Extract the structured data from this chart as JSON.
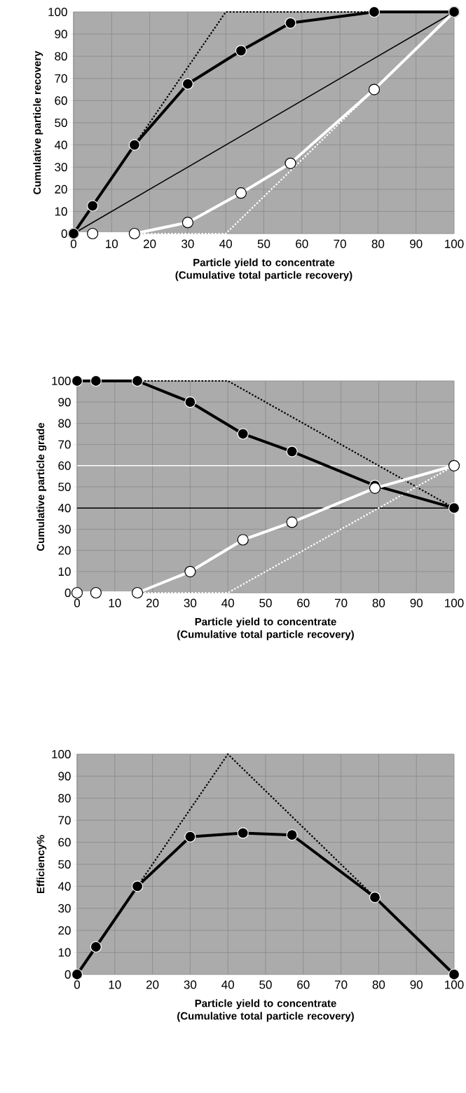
{
  "chart_data": [
    {
      "type": "line",
      "xlabel": "Particle yield to concentrate (Cumulative total particle recovery)",
      "ylabel": "Cumulative particle recovery",
      "xlim": [
        0,
        100
      ],
      "ylim": [
        0,
        100
      ],
      "xticks": [
        0,
        10,
        20,
        30,
        40,
        50,
        60,
        70,
        80,
        90,
        100
      ],
      "yticks": [
        0,
        10,
        20,
        30,
        40,
        50,
        60,
        70,
        80,
        90,
        100
      ],
      "grid": true,
      "series": [
        {
          "color": "#000000",
          "x": [
            0,
            40,
            100
          ],
          "values": [
            0,
            100,
            100
          ],
          "line_style": "dotted"
        },
        {
          "color": "#ffffff",
          "x": [
            0,
            40,
            100
          ],
          "values": [
            0,
            0,
            100
          ],
          "line_style": "dotted"
        },
        {
          "color": "#000000",
          "x": [
            0,
            100
          ],
          "values": [
            0,
            100
          ],
          "marker": "none",
          "line_style": "solid"
        },
        {
          "color": "#ffffff",
          "x": [
            0,
            5,
            16,
            30,
            44,
            57,
            79,
            100
          ],
          "values": [
            0,
            0,
            0,
            5,
            18.3,
            31.7,
            65,
            100
          ],
          "marker": "circle",
          "line_style": "solid"
        },
        {
          "color": "#000000",
          "x": [
            0,
            5,
            16,
            30,
            44,
            57,
            79,
            100
          ],
          "values": [
            0,
            12.5,
            40,
            67.5,
            82.5,
            95,
            100,
            100
          ],
          "marker": "circle",
          "line_style": "solid"
        }
      ]
    },
    {
      "type": "line",
      "xlabel": "Particle yield to concentrate (Cumulative total particle recovery)",
      "ylabel": "Cumulative particle grade",
      "xlim": [
        0,
        100
      ],
      "ylim": [
        0,
        100
      ],
      "xticks": [
        0,
        10,
        20,
        30,
        40,
        50,
        60,
        70,
        80,
        90,
        100
      ],
      "yticks": [
        0,
        10,
        20,
        30,
        40,
        50,
        60,
        70,
        80,
        90,
        100
      ],
      "grid": true,
      "ref_lines": [
        {
          "axis": "y",
          "value": 60,
          "color": "#ffffff"
        },
        {
          "axis": "y",
          "value": 40,
          "color": "#000000"
        }
      ],
      "series": [
        {
          "color": "#000000",
          "x": [
            0,
            40,
            100
          ],
          "values": [
            100,
            100,
            40
          ],
          "line_style": "dotted"
        },
        {
          "color": "#ffffff",
          "x": [
            0,
            40,
            100
          ],
          "values": [
            0,
            0,
            60
          ],
          "line_style": "dotted"
        },
        {
          "color": "#000000",
          "x": [
            0,
            5,
            16,
            30,
            44,
            57,
            79,
            100
          ],
          "values": [
            100,
            100,
            100,
            90,
            75,
            66.7,
            50.6,
            40
          ],
          "marker": "circle",
          "line_style": "solid"
        },
        {
          "color": "#ffffff",
          "x": [
            0,
            5,
            16,
            30,
            44,
            57,
            79,
            100
          ],
          "values": [
            0,
            0,
            0,
            10,
            25,
            33.3,
            49.4,
            60
          ],
          "marker": "circle",
          "line_style": "solid"
        }
      ]
    },
    {
      "type": "line",
      "xlabel": "Particle yield to concentrate (Cumulative total particle recovery)",
      "ylabel": "Efficiency%",
      "xlim": [
        0,
        100
      ],
      "ylim": [
        0,
        100
      ],
      "xticks": [
        0,
        10,
        20,
        30,
        40,
        50,
        60,
        70,
        80,
        90,
        100
      ],
      "yticks": [
        0,
        10,
        20,
        30,
        40,
        50,
        60,
        70,
        80,
        90,
        100
      ],
      "grid": true,
      "series": [
        {
          "color": "#000000",
          "x": [
            0,
            40,
            100
          ],
          "values": [
            0,
            100,
            0
          ],
          "line_style": "dotted"
        },
        {
          "color": "#000000",
          "x": [
            0,
            5,
            16,
            30,
            44,
            57,
            79,
            100
          ],
          "values": [
            0,
            12.5,
            40,
            62.5,
            64.2,
            63.3,
            35,
            0
          ],
          "marker": "circle",
          "line_style": "solid"
        }
      ]
    }
  ]
}
